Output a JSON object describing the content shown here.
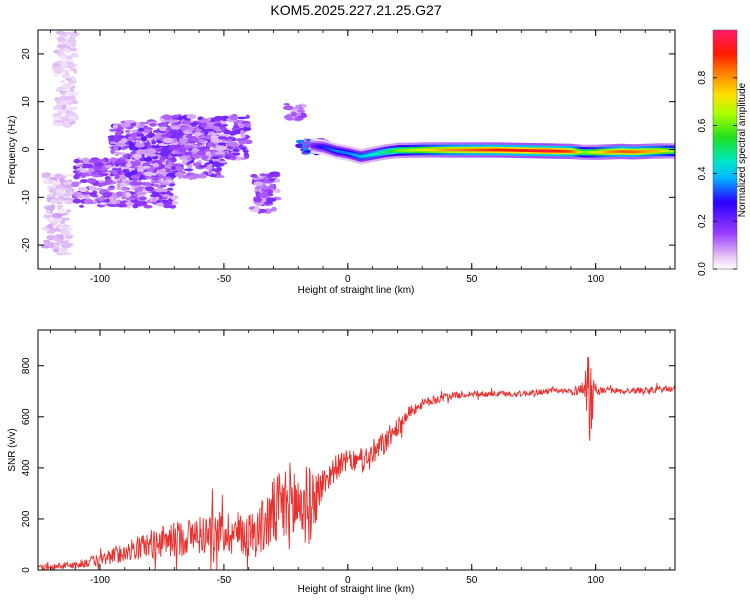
{
  "chart_data": [
    {
      "type": "heatmap",
      "title": "KOM5.2025.227.21.25.G27",
      "xlabel": "Height of straight line (km)",
      "ylabel": "Frequency (Hz)",
      "xlim": [
        -125,
        132
      ],
      "ylim": [
        -25,
        25
      ],
      "x_ticks": [
        -100,
        -50,
        0,
        50,
        100
      ],
      "x_tick_labels": [
        "-100",
        "-50",
        "0",
        "50",
        "100"
      ],
      "y_ticks": [
        -20,
        -10,
        0,
        10,
        20
      ],
      "y_tick_labels": [
        "-20",
        "-10",
        "0",
        "10",
        "20"
      ],
      "colorbar": {
        "label": "Normalized spectral amplitude",
        "range": [
          0,
          1
        ],
        "ticks": [
          0,
          0.2,
          0.4,
          0.6,
          0.8
        ],
        "tick_labels": [
          "0.0",
          "0.2",
          "0.4",
          "0.6",
          "0.8"
        ]
      },
      "clusters": [
        {
          "x": [
            -122,
            -112
          ],
          "y": [
            -22,
            -5
          ],
          "amp": 0.05
        },
        {
          "x": [
            -118,
            -110
          ],
          "y": [
            5,
            25
          ],
          "amp": 0.04
        },
        {
          "x": [
            -110,
            -70
          ],
          "y": [
            -12,
            -2
          ],
          "amp": 0.12
        },
        {
          "x": [
            -95,
            -50
          ],
          "y": [
            -6,
            6
          ],
          "amp": 0.14
        },
        {
          "x": [
            -75,
            -40
          ],
          "y": [
            -2,
            7
          ],
          "amp": 0.13
        },
        {
          "x": [
            -38,
            -28
          ],
          "y": [
            -13,
            -5
          ],
          "amp": 0.12
        },
        {
          "x": [
            -25,
            -18
          ],
          "y": [
            6,
            10
          ],
          "amp": 0.1
        },
        {
          "x": [
            -20,
            -8
          ],
          "y": [
            -1,
            2
          ],
          "amp": 0.25
        }
      ],
      "ridge": {
        "x": [
          -15,
          -10,
          -5,
          0,
          5,
          10,
          15,
          20,
          30,
          40,
          50,
          60,
          70,
          80,
          90,
          95,
          100,
          105,
          110,
          115,
          120,
          125,
          132
        ],
        "y": [
          0.8,
          0.5,
          -0.3,
          -0.8,
          -1.5,
          -1.0,
          -0.5,
          -0.2,
          -0.1,
          -0.1,
          -0.1,
          -0.1,
          -0.2,
          -0.3,
          -0.4,
          -0.6,
          -0.6,
          -0.5,
          -0.4,
          -0.5,
          -0.4,
          -0.3,
          -0.3
        ],
        "amp": [
          0.2,
          0.3,
          0.35,
          0.35,
          0.4,
          0.45,
          0.5,
          0.6,
          0.7,
          0.8,
          0.85,
          0.9,
          0.9,
          0.95,
          0.85,
          0.6,
          0.7,
          0.8,
          0.85,
          0.85,
          0.8,
          0.75,
          0.6
        ]
      }
    },
    {
      "type": "line",
      "title": "",
      "xlabel": "Height of straight line (km)",
      "ylabel": "SNR (v/v)",
      "xlim": [
        -125,
        132
      ],
      "ylim": [
        0,
        940
      ],
      "x_ticks": [
        -100,
        -50,
        0,
        50,
        100
      ],
      "x_tick_labels": [
        "-100",
        "-50",
        "0",
        "50",
        "100"
      ],
      "y_ticks": [
        0,
        200,
        400,
        600,
        800
      ],
      "y_tick_labels": [
        "0",
        "200",
        "400",
        "600",
        "800"
      ],
      "series": [
        {
          "name": "SNR",
          "color": "#e8302e",
          "x": [
            -125,
            -110,
            -100,
            -90,
            -80,
            -70,
            -60,
            -50,
            -40,
            -35,
            -30,
            -25,
            -20,
            -15,
            -10,
            -5,
            0,
            5,
            10,
            15,
            20,
            25,
            30,
            40,
            50,
            60,
            70,
            80,
            90,
            95,
            97,
            98,
            99,
            100,
            105,
            110,
            120,
            132
          ],
          "values": [
            10,
            20,
            40,
            70,
            100,
            120,
            140,
            150,
            140,
            160,
            220,
            250,
            260,
            250,
            340,
            400,
            430,
            420,
            450,
            500,
            560,
            620,
            650,
            680,
            690,
            690,
            690,
            700,
            700,
            710,
            750,
            650,
            700,
            700,
            705,
            700,
            705,
            710
          ],
          "noise": [
            10,
            15,
            25,
            40,
            55,
            70,
            80,
            90,
            90,
            110,
            140,
            170,
            180,
            150,
            60,
            50,
            40,
            45,
            60,
            50,
            35,
            25,
            20,
            15,
            12,
            12,
            12,
            12,
            12,
            30,
            180,
            200,
            80,
            15,
            12,
            12,
            12,
            12
          ]
        }
      ]
    }
  ]
}
